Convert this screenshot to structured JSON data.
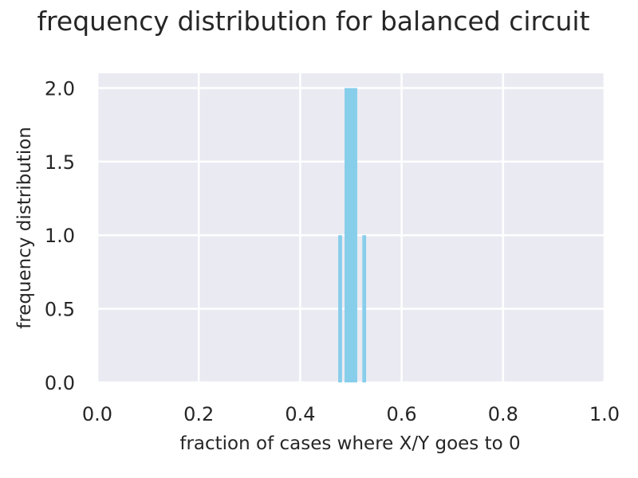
{
  "chart_data": {
    "type": "bar",
    "title": "frequency distribution for balanced circuit",
    "xlabel": "fraction of cases where X/Y goes to 0",
    "ylabel": "frequency distribution",
    "xlim": [
      0.0,
      1.0
    ],
    "ylim": [
      0.0,
      2.1
    ],
    "xticks": [
      "0.0",
      "0.2",
      "0.4",
      "0.6",
      "0.8",
      "1.0"
    ],
    "yticks": [
      "0.0",
      "0.5",
      "1.0",
      "1.5",
      "2.0"
    ],
    "grid": true,
    "bar_color": "#87ceeb",
    "background_color": "#eaeaf2",
    "bins": [
      {
        "x0": 0.475,
        "x1": 0.4825,
        "count": 1
      },
      {
        "x0": 0.4825,
        "x1": 0.4875,
        "count": 0
      },
      {
        "x0": 0.4875,
        "x1": 0.5125,
        "count": 2
      },
      {
        "x0": 0.5125,
        "x1": 0.5225,
        "count": 0
      },
      {
        "x0": 0.5225,
        "x1": 0.53,
        "count": 1
      }
    ]
  }
}
